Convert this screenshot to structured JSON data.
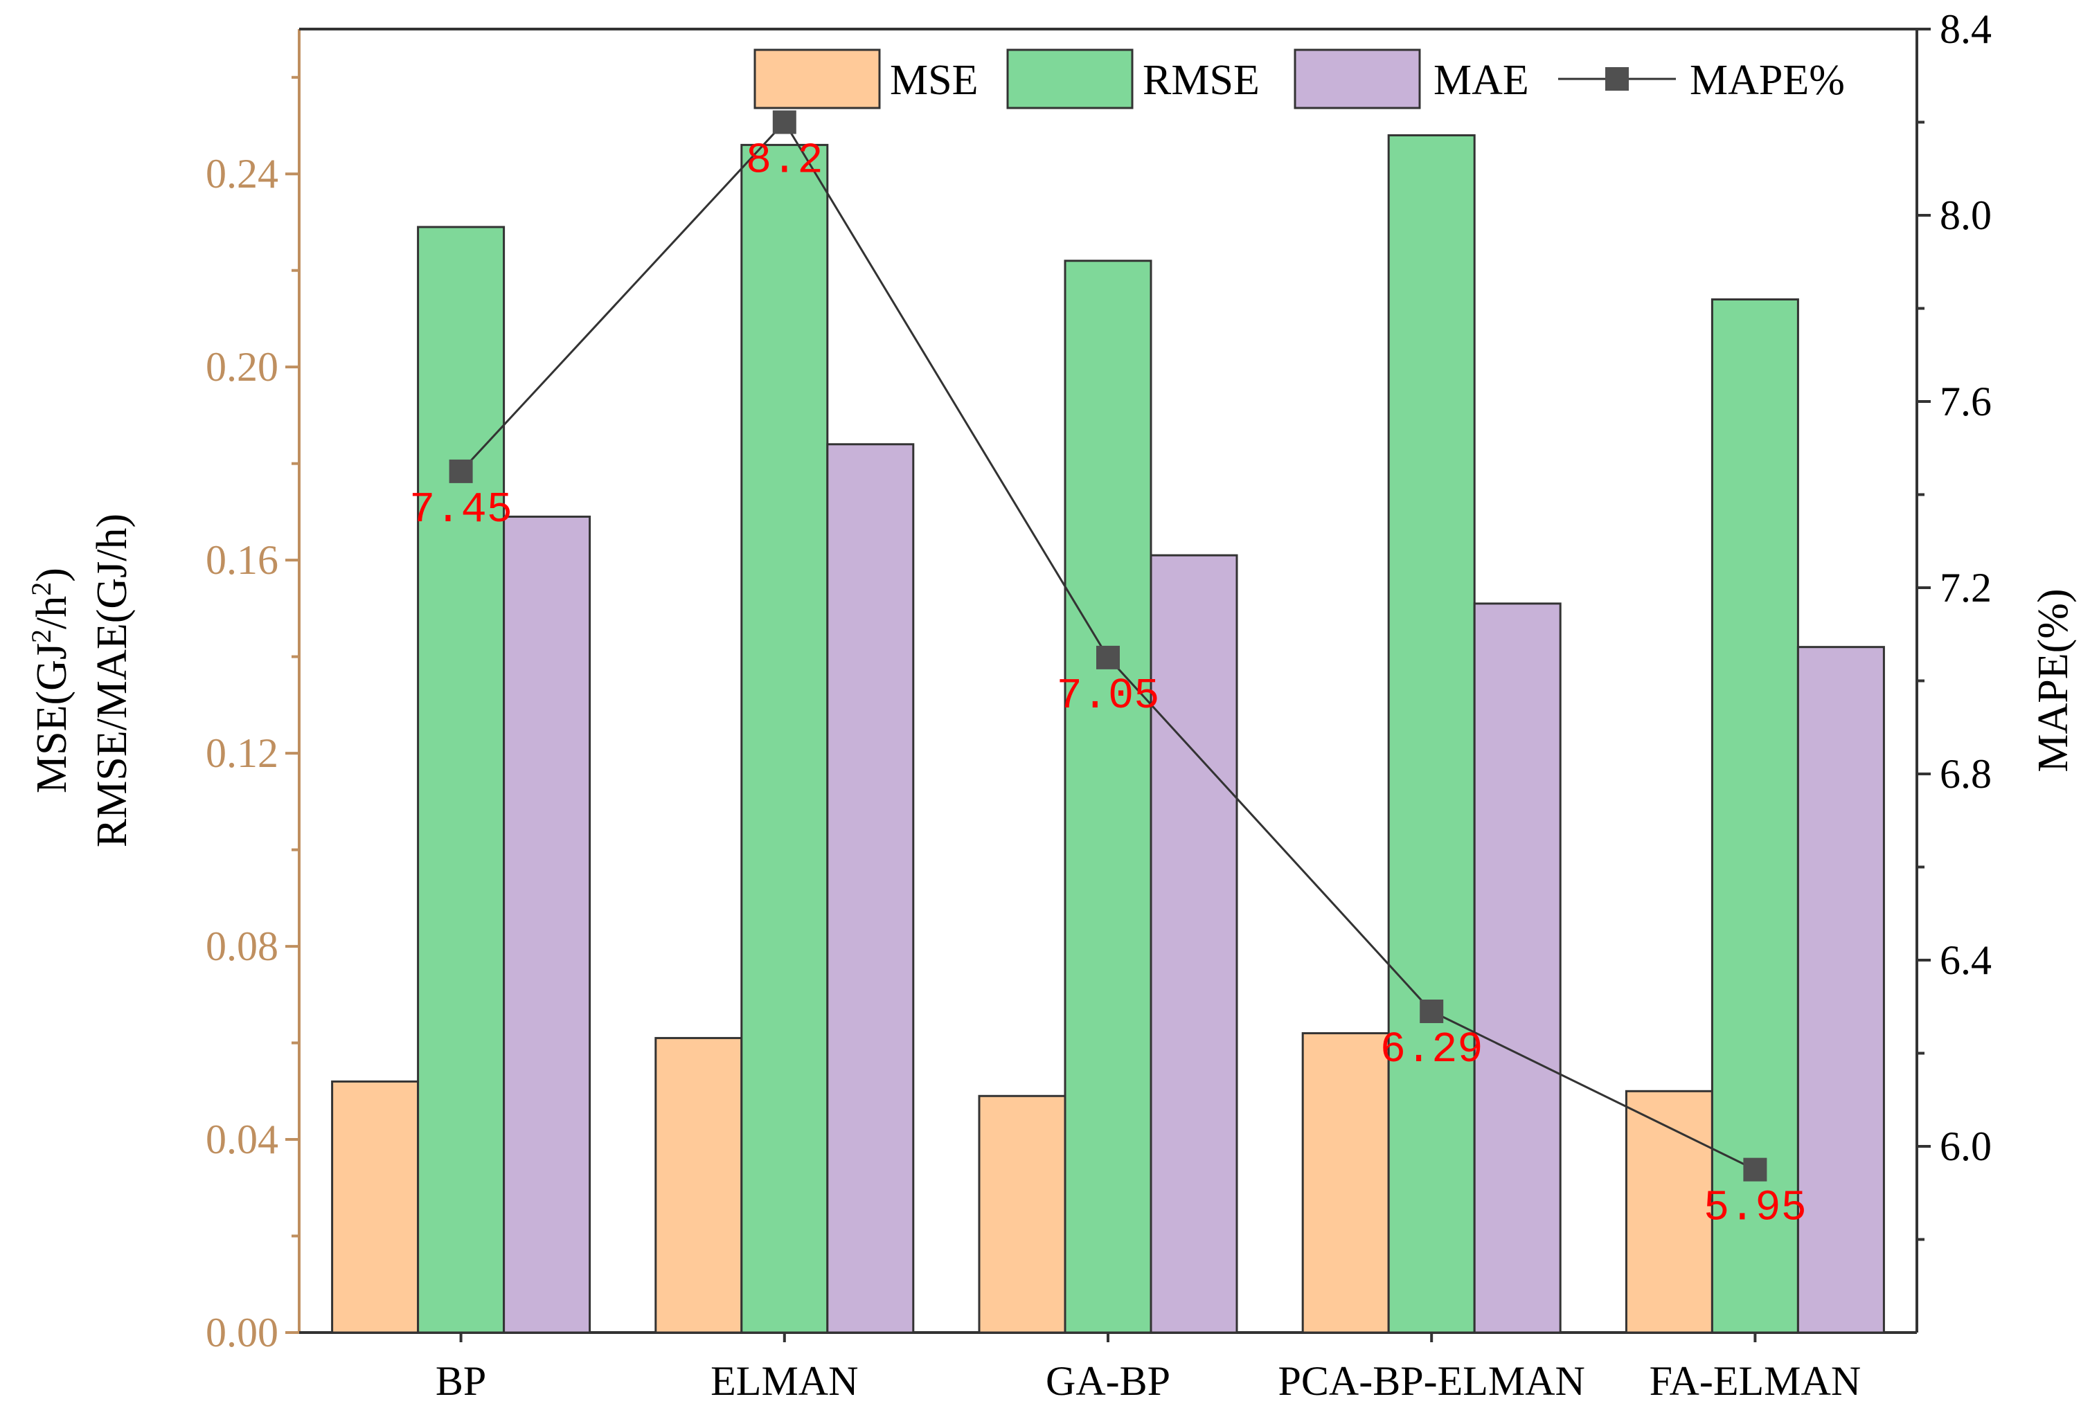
{
  "chart_data": {
    "type": "bar",
    "categories": [
      "BP",
      "ELMAN",
      "GA-BP",
      "PCA-BP-ELMAN",
      "FA-ELMAN"
    ],
    "series": [
      {
        "name": "MSE",
        "axis": "left",
        "values": [
          0.052,
          0.061,
          0.049,
          0.062,
          0.05
        ],
        "color": "#FFCA99"
      },
      {
        "name": "RMSE",
        "axis": "left",
        "values": [
          0.229,
          0.246,
          0.222,
          0.248,
          0.214
        ],
        "color": "#7FD899"
      },
      {
        "name": "MAE",
        "axis": "left",
        "values": [
          0.169,
          0.184,
          0.161,
          0.151,
          0.142
        ],
        "color": "#C8B2D8"
      }
    ],
    "line_series": {
      "name": "MAPE%",
      "type": "line",
      "axis": "right",
      "values": [
        7.45,
        8.2,
        7.05,
        6.29,
        5.95
      ],
      "labels": [
        "7.45",
        "8.2",
        "7.05",
        "6.29",
        "5.95"
      ],
      "color": "#333333",
      "marker_color": "#505050",
      "label_color": "#FF0000"
    },
    "y_left": {
      "label_line1_prefix": "MSE(GJ",
      "label_line1_sup1": "2",
      "label_line1_mid": "/h",
      "label_line1_sup2": "2",
      "label_line1_suffix": ")",
      "label_line2": "RMSE/MAE(GJ/h)",
      "ylim": [
        0,
        0.27
      ],
      "ticks": [
        0.0,
        0.04,
        0.08,
        0.12,
        0.16,
        0.2,
        0.24
      ],
      "tick_labels": [
        "0.00",
        "0.04",
        "0.08",
        "0.12",
        "0.16",
        "0.20",
        "0.24"
      ],
      "color": "#BF8F5F"
    },
    "y_right": {
      "label": "MAPE(%)",
      "ylim": [
        5.6,
        8.4
      ],
      "ticks": [
        6.0,
        6.4,
        6.8,
        7.2,
        7.6,
        8.0,
        8.4
      ],
      "tick_labels": [
        "6.0",
        "6.4",
        "6.8",
        "7.2",
        "7.6",
        "8.0",
        "8.4"
      ]
    },
    "legend": [
      "MSE",
      "RMSE",
      "MAE",
      "MAPE%"
    ],
    "legend_position": "top-right"
  }
}
